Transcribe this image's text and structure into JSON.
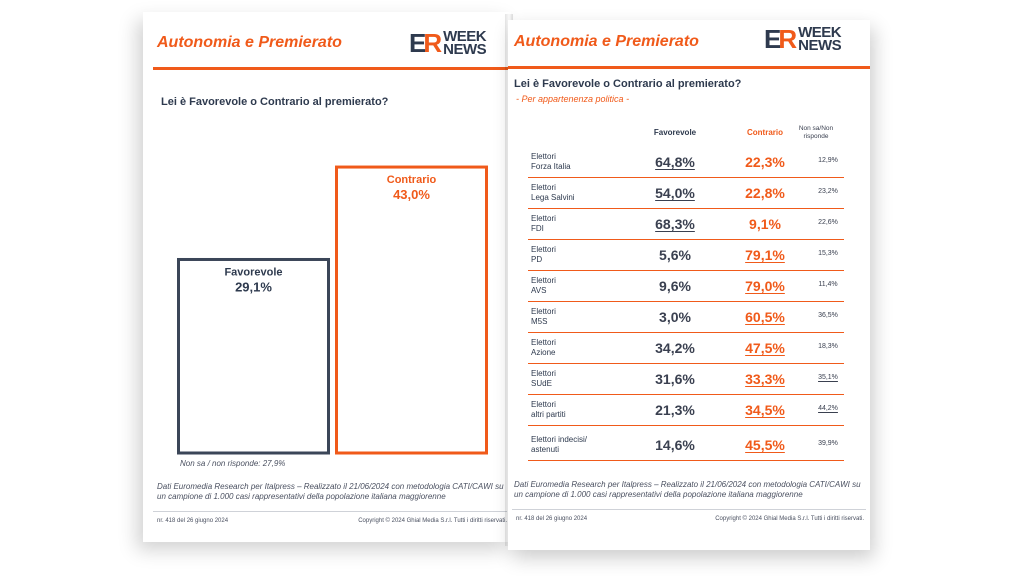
{
  "left_page": {
    "section_title": "Autonomia e Premierato",
    "logo": {
      "e": "E",
      "r": "R",
      "week": "WEEK",
      "news": "NEWS"
    },
    "question": "Lei è Favorevole o Contrario al premierato?",
    "note": "Non sa / non risponde: 27,9%",
    "footnote": "Dati Euromedia Research per Italpress – Realizzato il 21/06/2024 con metodologia CATI/CAWI su un campione di 1.000 casi rappresentativi della popolazione italiana maggiorenne",
    "issue": "nr. 418 del 26 giugno 2024",
    "copyright": "Copyright © 2024 Ghial Media S.r.l. Tutti i diritti riservati."
  },
  "chart_data": {
    "type": "bar",
    "categories": [
      "Favorevole",
      "Contrario"
    ],
    "values": [
      29.1,
      43.0
    ],
    "value_labels": [
      "29,1%",
      "43,0%"
    ],
    "colors": [
      "#3b4658",
      "#f05a1a"
    ],
    "style": "outlined",
    "grid": false
  },
  "right_page": {
    "section_title": "Autonomia e Premierato",
    "logo": {
      "e": "E",
      "r": "R",
      "week": "WEEK",
      "news": "NEWS"
    },
    "question": "Lei è Favorevole o Contrario al premierato?",
    "subtitle": "- Per appartenenza politica -",
    "columns": {
      "favorevole": "Favorevole",
      "contrario": "Contrario",
      "non_sa_1": "Non sa/Non",
      "non_sa_2": "risponde"
    },
    "rows": [
      {
        "name1": "Elettori",
        "name2": "Forza Italia",
        "fav": "64,8%",
        "con": "22,3%",
        "ns": "12,9%",
        "highlight": "fav"
      },
      {
        "name1": "Elettori",
        "name2": "Lega Salvini",
        "fav": "54,0%",
        "con": "22,8%",
        "ns": "23,2%",
        "highlight": "fav"
      },
      {
        "name1": "Elettori",
        "name2": "FDI",
        "fav": "68,3%",
        "con": "9,1%",
        "ns": "22,6%",
        "highlight": "fav"
      },
      {
        "name1": "Elettori",
        "name2": "PD",
        "fav": "5,6%",
        "con": "79,1%",
        "ns": "15,3%",
        "highlight": "con"
      },
      {
        "name1": "Elettori",
        "name2": "AVS",
        "fav": "9,6%",
        "con": "79,0%",
        "ns": "11,4%",
        "highlight": "con"
      },
      {
        "name1": "Elettori",
        "name2": "M5S",
        "fav": "3,0%",
        "con": "60,5%",
        "ns": "36,5%",
        "highlight": "con"
      },
      {
        "name1": "Elettori",
        "name2": "Azione",
        "fav": "34,2%",
        "con": "47,5%",
        "ns": "18,3%",
        "highlight": "con"
      },
      {
        "name1": "Elettori",
        "name2": "SUdE",
        "fav": "31,6%",
        "con": "33,3%",
        "ns": "35,1%",
        "highlight": "con_ns"
      },
      {
        "name1": "Elettori",
        "name2": "altri partiti",
        "fav": "21,3%",
        "con": "34,5%",
        "ns": "44,2%",
        "highlight": "con_ns"
      },
      {
        "name1": "Elettori indecisi/",
        "name2": "astenuti",
        "fav": "14,6%",
        "con": "45,5%",
        "ns": "39,9%",
        "highlight": "con"
      }
    ],
    "footnote": "Dati Euromedia Research per Italpress – Realizzato il 21/06/2024 con metodologia CATI/CAWI su un campione di 1.000 casi rappresentativi della popolazione italiana maggiorenne",
    "issue": "nr. 418 del 26 giugno 2024",
    "copyright": "Copyright © 2024 Ghial Media S.r.l. Tutti i diritti riservati."
  }
}
